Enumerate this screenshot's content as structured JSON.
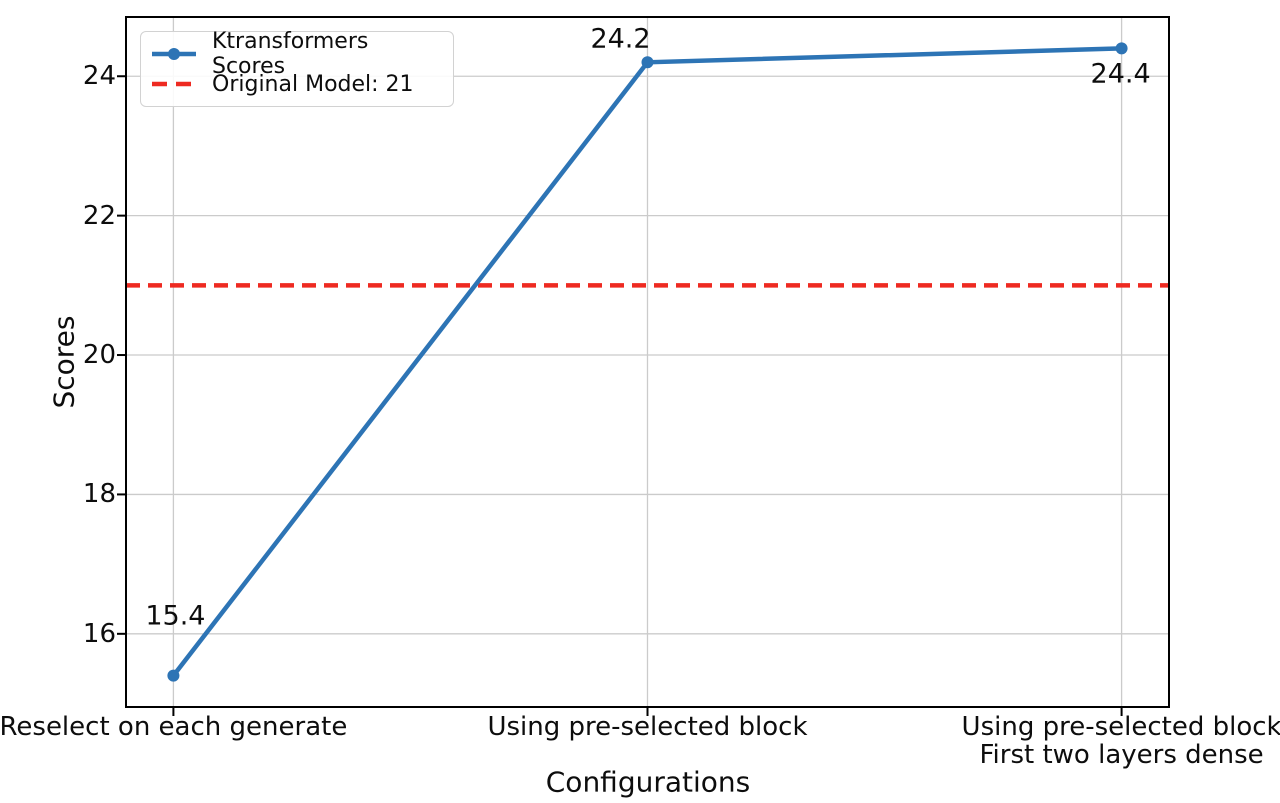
{
  "chart_data": {
    "type": "line",
    "xlabel": "Configurations",
    "ylabel": "Scores",
    "categories": [
      "Reselect on each generate",
      "Using pre-selected block",
      "Using pre-selected block\nFirst two layers dense"
    ],
    "series": [
      {
        "name": "Ktransformers Scores",
        "values": [
          15.4,
          24.2,
          24.4
        ],
        "color": "#2d74b5",
        "style": "solid",
        "marker": "circle"
      }
    ],
    "reference_line": {
      "label": "Original Model: 21",
      "value": 21,
      "color": "#ee2a21",
      "style": "dashed"
    },
    "point_labels": [
      "15.4",
      "24.2",
      "24.4"
    ],
    "yticks": [
      16,
      18,
      20,
      22,
      24
    ],
    "ylim": [
      14.95,
      24.85
    ],
    "xlim": [
      -0.1,
      2.1
    ],
    "grid": true,
    "grid_color": "#cbcbcb",
    "axis_color": "#000000",
    "legend_position": "upper left"
  }
}
